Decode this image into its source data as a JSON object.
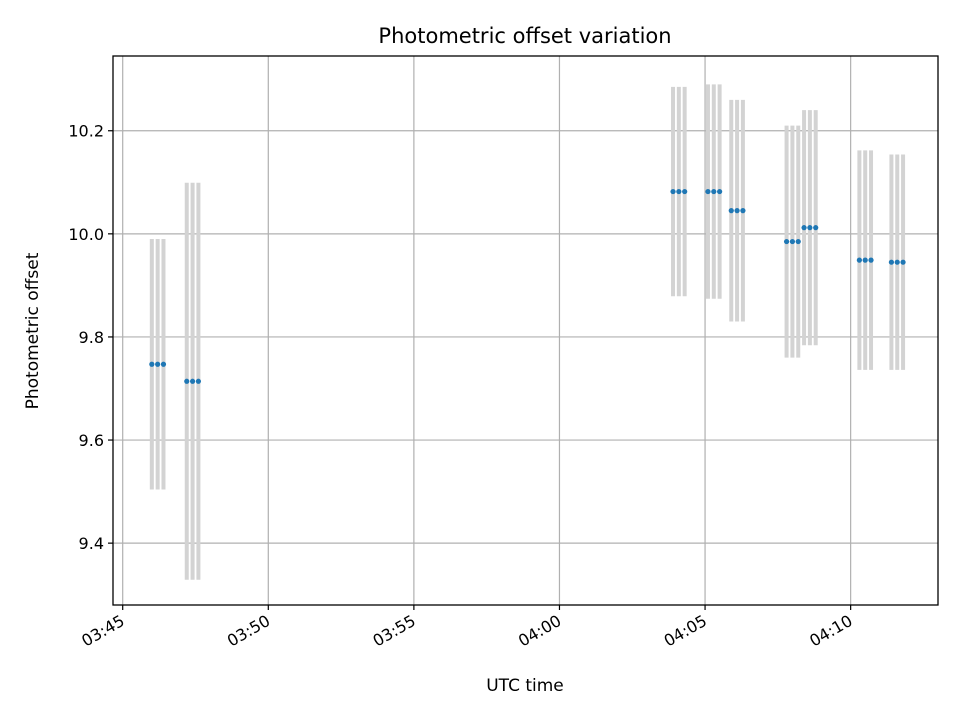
{
  "chart_data": {
    "type": "scatter",
    "title": "Photometric offset variation",
    "xlabel": "UTC time",
    "ylabel": "Photometric offset",
    "x_range": [
      "03:44:40",
      "04:13:00"
    ],
    "ylim": [
      9.28,
      10.345
    ],
    "x_ticks": [
      "03:45",
      "03:50",
      "03:55",
      "04:00",
      "04:05",
      "04:10"
    ],
    "y_ticks": [
      9.4,
      9.6,
      9.8,
      10.0,
      10.2
    ],
    "grid": true,
    "colors": {
      "point": "#1f77b4",
      "errorbar": "#d3d3d3"
    },
    "series": [
      {
        "points": [
          {
            "x": "03:46:00",
            "y": 9.747,
            "err": 0.243
          },
          {
            "x": "03:46:12",
            "y": 9.747,
            "err": 0.243
          },
          {
            "x": "03:46:24",
            "y": 9.747,
            "err": 0.243
          },
          {
            "x": "03:47:12",
            "y": 9.714,
            "err": 0.385
          },
          {
            "x": "03:47:24",
            "y": 9.714,
            "err": 0.385
          },
          {
            "x": "03:47:36",
            "y": 9.714,
            "err": 0.385
          },
          {
            "x": "04:03:54",
            "y": 10.082,
            "err": 0.203
          },
          {
            "x": "04:04:06",
            "y": 10.082,
            "err": 0.203
          },
          {
            "x": "04:04:18",
            "y": 10.082,
            "err": 0.203
          },
          {
            "x": "04:05:06",
            "y": 10.082,
            "err": 0.208
          },
          {
            "x": "04:05:18",
            "y": 10.082,
            "err": 0.208
          },
          {
            "x": "04:05:30",
            "y": 10.082,
            "err": 0.208
          },
          {
            "x": "04:05:54",
            "y": 10.045,
            "err": 0.215
          },
          {
            "x": "04:06:06",
            "y": 10.045,
            "err": 0.215
          },
          {
            "x": "04:06:18",
            "y": 10.045,
            "err": 0.215
          },
          {
            "x": "04:07:48",
            "y": 9.985,
            "err": 0.225
          },
          {
            "x": "04:08:00",
            "y": 9.985,
            "err": 0.225
          },
          {
            "x": "04:08:12",
            "y": 9.985,
            "err": 0.225
          },
          {
            "x": "04:08:24",
            "y": 10.012,
            "err": 0.228
          },
          {
            "x": "04:08:36",
            "y": 10.012,
            "err": 0.228
          },
          {
            "x": "04:08:48",
            "y": 10.012,
            "err": 0.228
          },
          {
            "x": "04:10:18",
            "y": 9.949,
            "err": 0.213
          },
          {
            "x": "04:10:30",
            "y": 9.949,
            "err": 0.213
          },
          {
            "x": "04:10:42",
            "y": 9.949,
            "err": 0.213
          },
          {
            "x": "04:11:24",
            "y": 9.945,
            "err": 0.209
          },
          {
            "x": "04:11:36",
            "y": 9.945,
            "err": 0.209
          },
          {
            "x": "04:11:48",
            "y": 9.945,
            "err": 0.209
          }
        ]
      }
    ]
  }
}
